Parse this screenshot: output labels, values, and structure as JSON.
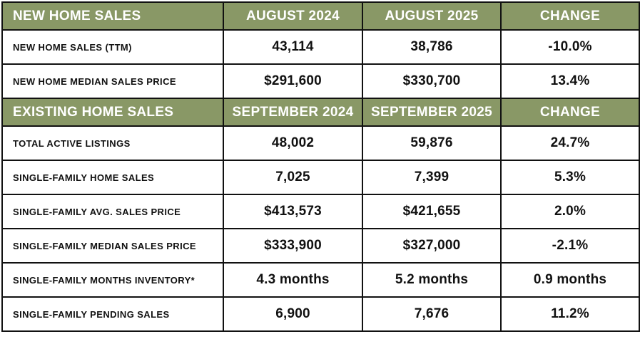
{
  "sections": [
    {
      "header": {
        "title": "NEW HOME SALES",
        "col1": "AUGUST 2024",
        "col2": "AUGUST 2025",
        "col3": "CHANGE"
      },
      "rows": [
        {
          "label": "NEW HOME SALES (TTM)",
          "v1": "43,114",
          "v2": "38,786",
          "change": "-10.0%"
        },
        {
          "label": "NEW HOME MEDIAN SALES PRICE",
          "v1": "$291,600",
          "v2": "$330,700",
          "change": "13.4%"
        }
      ]
    },
    {
      "header": {
        "title": "EXISTING HOME SALES",
        "col1": "SEPTEMBER 2024",
        "col2": "SEPTEMBER 2025",
        "col3": "CHANGE"
      },
      "rows": [
        {
          "label": "TOTAL ACTIVE LISTINGS",
          "v1": "48,002",
          "v2": "59,876",
          "change": "24.7%"
        },
        {
          "label": "SINGLE-FAMILY HOME SALES",
          "v1": "7,025",
          "v2": "7,399",
          "change": "5.3%"
        },
        {
          "label": "SINGLE-FAMILY AVG. SALES PRICE",
          "v1": "$413,573",
          "v2": "$421,655",
          "change": "2.0%"
        },
        {
          "label": "SINGLE-FAMILY MEDIAN SALES PRICE",
          "v1": "$333,900",
          "v2": "$327,000",
          "change": "-2.1%"
        },
        {
          "label": "SINGLE-FAMILY MONTHS INVENTORY*",
          "v1": "4.3 months",
          "v2": "5.2 months",
          "change": "0.9 months"
        },
        {
          "label": "SINGLE-FAMILY PENDING SALES",
          "v1": "6,900",
          "v2": "7,676",
          "change": "11.2%"
        }
      ]
    }
  ],
  "colors": {
    "header_bg": "#899866",
    "header_text": "#ffffff",
    "border": "#111111"
  }
}
